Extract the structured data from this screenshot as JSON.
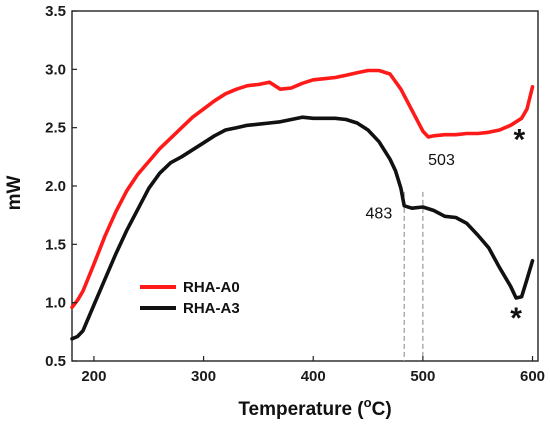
{
  "chart_data": {
    "type": "line",
    "title": "",
    "xlabel": "Temperature (",
    "xlabel_unit_sup": "o",
    "xlabel_unit_tail": "C)",
    "ylabel": "mW",
    "xlim": [
      180,
      605
    ],
    "ylim": [
      0.5,
      3.5
    ],
    "xticks": [
      200,
      300,
      400,
      500,
      600
    ],
    "yticks": [
      0.5,
      1.0,
      1.5,
      2.0,
      2.5,
      3.0,
      3.5
    ],
    "ytick_labels": [
      "0.5",
      "1.0",
      "1.5",
      "2.0",
      "2.5",
      "3.0",
      "3.5"
    ],
    "legend_position": "lower-left",
    "series": [
      {
        "name": "RHA-A0",
        "color": "#ff1a1a",
        "x": [
          180,
          185,
          190,
          200,
          210,
          220,
          230,
          240,
          250,
          260,
          270,
          280,
          290,
          300,
          310,
          320,
          330,
          340,
          350,
          360,
          370,
          380,
          390,
          400,
          410,
          420,
          430,
          440,
          450,
          460,
          470,
          480,
          490,
          500,
          505,
          510,
          520,
          530,
          540,
          550,
          560,
          570,
          580,
          590,
          595,
          600
        ],
        "y": [
          0.96,
          1.02,
          1.1,
          1.33,
          1.57,
          1.78,
          1.96,
          2.1,
          2.21,
          2.32,
          2.41,
          2.5,
          2.59,
          2.66,
          2.73,
          2.79,
          2.83,
          2.86,
          2.87,
          2.89,
          2.83,
          2.84,
          2.88,
          2.91,
          2.92,
          2.93,
          2.95,
          2.97,
          2.99,
          2.99,
          2.96,
          2.83,
          2.65,
          2.47,
          2.42,
          2.43,
          2.44,
          2.44,
          2.45,
          2.45,
          2.46,
          2.48,
          2.52,
          2.58,
          2.66,
          2.85
        ]
      },
      {
        "name": "RHA-A3",
        "color": "#111111",
        "x": [
          180,
          185,
          190,
          200,
          210,
          220,
          230,
          240,
          250,
          260,
          270,
          280,
          290,
          300,
          310,
          320,
          330,
          340,
          350,
          360,
          370,
          380,
          390,
          400,
          410,
          420,
          430,
          440,
          450,
          460,
          470,
          475,
          480,
          483,
          490,
          500,
          510,
          520,
          530,
          540,
          550,
          560,
          570,
          580,
          585,
          590,
          595,
          600
        ],
        "y": [
          0.69,
          0.71,
          0.76,
          0.98,
          1.2,
          1.42,
          1.62,
          1.8,
          1.98,
          2.11,
          2.2,
          2.25,
          2.31,
          2.37,
          2.43,
          2.48,
          2.5,
          2.52,
          2.53,
          2.54,
          2.55,
          2.57,
          2.59,
          2.58,
          2.58,
          2.58,
          2.57,
          2.54,
          2.48,
          2.38,
          2.23,
          2.13,
          1.98,
          1.83,
          1.81,
          1.82,
          1.79,
          1.74,
          1.73,
          1.68,
          1.58,
          1.47,
          1.3,
          1.14,
          1.04,
          1.05,
          1.2,
          1.36
        ]
      }
    ],
    "annotations": [
      {
        "text": "483",
        "x": 483
      },
      {
        "text": "503",
        "x": 503
      }
    ],
    "markers": [
      {
        "symbol": "*",
        "series": "RHA-A0",
        "x": 588
      },
      {
        "symbol": "*",
        "series": "RHA-A3",
        "x": 585
      }
    ],
    "reference_lines": [
      {
        "x": 483,
        "style": "dashed",
        "color": "#999999"
      },
      {
        "x": 500,
        "style": "dashed",
        "color": "#999999"
      }
    ]
  }
}
